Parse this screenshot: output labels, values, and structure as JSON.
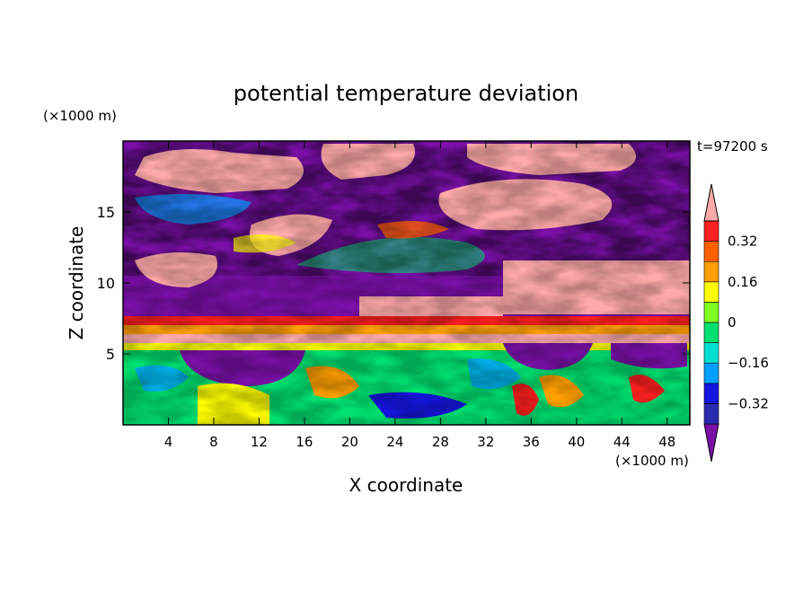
{
  "chart_data": {
    "type": "heatmap",
    "title": "potential temperature deviation",
    "xlabel": "X coordinate",
    "ylabel": "Z coordinate",
    "x_unit": "(×1000 m)",
    "y_unit": "(×1000 m)",
    "time_label": "t=97200 s",
    "xlim": [
      0,
      50
    ],
    "ylim": [
      0,
      20
    ],
    "x_ticks": [
      4,
      8,
      12,
      16,
      20,
      24,
      28,
      32,
      36,
      40,
      44,
      48
    ],
    "y_ticks": [
      5,
      10,
      15
    ],
    "colorbar": {
      "levels": [
        -0.4,
        -0.32,
        -0.24,
        -0.16,
        -0.08,
        0,
        0.08,
        0.16,
        0.24,
        0.32,
        0.4
      ],
      "labels": [
        {
          "value": 0.32,
          "text": "0.32"
        },
        {
          "value": 0.16,
          "text": "0.16"
        },
        {
          "value": 0,
          "text": "0"
        },
        {
          "value": -0.16,
          "text": "−0.16"
        },
        {
          "value": -0.32,
          "text": "−0.32"
        }
      ],
      "colors": [
        "#7a10a8",
        "#2a2ab0",
        "#1515e0",
        "#00a0ff",
        "#00e0d0",
        "#00e070",
        "#80ff20",
        "#ffff00",
        "#ffa000",
        "#ff6000",
        "#ff2020",
        "#ffaaaa"
      ],
      "extend": "both"
    }
  }
}
